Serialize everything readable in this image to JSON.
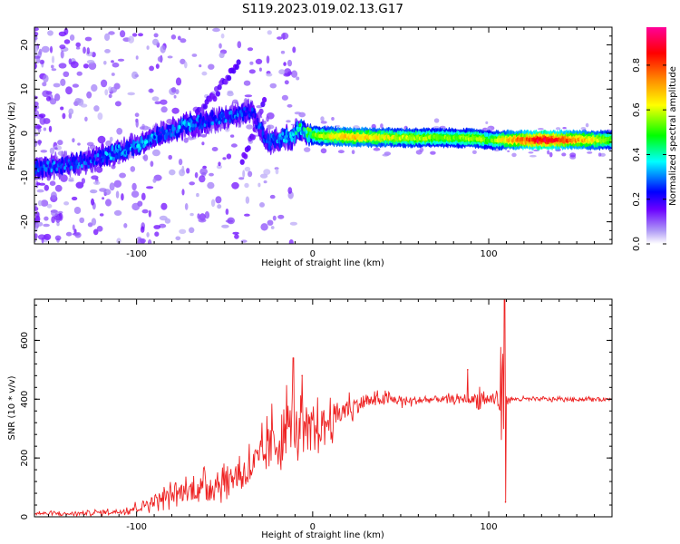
{
  "figure_title": "S119.2023.019.02.13.G17",
  "chart_data": [
    {
      "type": "heatmap",
      "xlabel": "Height of straight line (km)",
      "ylabel": "Frequency (Hz)",
      "xlim": [
        -158,
        170
      ],
      "ylim": [
        -25,
        24
      ],
      "x_ticks": [
        -100,
        0,
        100
      ],
      "x_tick_labels": [
        "-100",
        "0",
        "100"
      ],
      "y_ticks": [
        -20,
        -10,
        0,
        10,
        20
      ],
      "y_tick_labels": [
        "-20",
        "-10",
        "0",
        "10",
        "20"
      ],
      "colorbar": {
        "label": "Normalized spectral amplitude",
        "range": [
          0,
          0.97
        ],
        "ticks": [
          0.0,
          0.2,
          0.4,
          0.6,
          0.8
        ],
        "tick_labels": [
          "0.0",
          "0.2",
          "0.4",
          "0.6",
          "0.8"
        ],
        "colors": [
          "#ffffff",
          "#6a00ff",
          "#0000ff",
          "#00ffff",
          "#00ff00",
          "#ffff00",
          "#ff8800",
          "#ff0000",
          "#ff0099"
        ]
      },
      "ridge": {
        "x": [
          -158,
          -140,
          -125,
          -110,
          -95,
          -85,
          -70,
          -55,
          -45,
          -35,
          -25,
          -18,
          -12,
          -8,
          0,
          20,
          50,
          80,
          95,
          100,
          105,
          130,
          170
        ],
        "frequency": [
          -8,
          -7,
          -6,
          -4,
          -2,
          0,
          2,
          3,
          4,
          5,
          -2,
          -1,
          -1,
          1,
          -0.5,
          -0.8,
          -1,
          -1,
          -1.2,
          -1.5,
          -1.5,
          -1.5,
          -1.5
        ],
        "amplitude": [
          0.32,
          0.3,
          0.3,
          0.35,
          0.35,
          0.3,
          0.35,
          0.3,
          0.3,
          0.25,
          0.3,
          0.35,
          0.4,
          0.45,
          0.55,
          0.7,
          0.6,
          0.55,
          0.6,
          0.5,
          0.6,
          0.92,
          0.55
        ]
      },
      "branches": [
        {
          "x": [
            -70,
            -55,
            -42
          ],
          "frequency": [
            2,
            9,
            16
          ],
          "amplitude": 0.12
        },
        {
          "x": [
            -40,
            -33,
            -27
          ],
          "frequency": [
            -6,
            0,
            8
          ],
          "amplitude": 0.12
        }
      ]
    },
    {
      "type": "line",
      "xlabel": "Height of straight line (km)",
      "ylabel": "SNR (10 * v/v)",
      "xlim": [
        -158,
        170
      ],
      "ylim": [
        0,
        740
      ],
      "x_ticks": [
        -100,
        0,
        100
      ],
      "x_tick_labels": [
        "-100",
        "0",
        "100"
      ],
      "y_ticks": [
        0,
        200,
        400,
        600
      ],
      "y_tick_labels": [
        "0",
        "200",
        "400",
        "600"
      ],
      "color": "#ee2222",
      "series": [
        {
          "x": [
            -158,
            -140,
            -120,
            -110,
            -100,
            -90,
            -80,
            -70,
            -60,
            -50,
            -40,
            -30,
            -25,
            -20,
            -15,
            -12,
            -10,
            -5,
            0,
            10,
            20,
            30,
            40,
            50,
            60,
            70,
            80,
            90,
            95,
            100,
            105,
            108,
            110,
            115,
            130,
            150,
            170
          ],
          "values": [
            12,
            10,
            15,
            18,
            30,
            55,
            75,
            90,
            105,
            125,
            150,
            190,
            230,
            260,
            300,
            320,
            300,
            280,
            290,
            330,
            370,
            390,
            400,
            395,
            395,
            400,
            400,
            398,
            400,
            400,
            398,
            400,
            400,
            400,
            400,
            400,
            400
          ],
          "spread": [
            8,
            8,
            10,
            12,
            20,
            30,
            40,
            50,
            55,
            60,
            70,
            90,
            110,
            140,
            130,
            120,
            110,
            100,
            90,
            70,
            50,
            30,
            25,
            22,
            18,
            16,
            16,
            15,
            60,
            20,
            50,
            200,
            15,
            8,
            8,
            8,
            8
          ]
        }
      ],
      "peaks": [
        {
          "x": -11,
          "value": 540
        },
        {
          "x": -6,
          "value": 480
        },
        {
          "x": 88,
          "value": 500
        },
        {
          "x": 109,
          "value": 740
        },
        {
          "x": 109.5,
          "value": 50
        }
      ]
    }
  ]
}
